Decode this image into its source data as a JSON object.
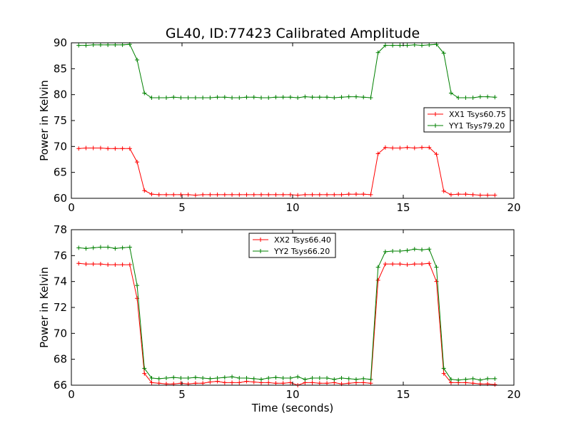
{
  "figure_title": "GL40, ID:77423 Calibrated Amplitude",
  "chart_data": [
    {
      "type": "line",
      "title": "GL40, ID:77423 Calibrated Amplitude",
      "xlabel": "",
      "ylabel": "Power in Kelvin",
      "xlim": [
        0,
        20
      ],
      "ylim": [
        60,
        90
      ],
      "xticks": [
        "0",
        "5",
        "10",
        "15",
        "20"
      ],
      "yticks": [
        "60",
        "65",
        "70",
        "75",
        "80",
        "85",
        "90"
      ],
      "grid": false,
      "legend_position": "center-right",
      "series": [
        {
          "name": "XX1 Tsys60.75",
          "color": "#ff0000",
          "x": [
            0.33,
            0.66,
            0.99,
            1.32,
            1.65,
            1.98,
            2.31,
            2.64,
            2.97,
            3.3,
            3.63,
            3.96,
            4.29,
            4.62,
            4.95,
            5.28,
            5.61,
            5.94,
            6.27,
            6.6,
            6.93,
            7.26,
            7.59,
            7.92,
            8.25,
            8.58,
            8.91,
            9.24,
            9.57,
            9.9,
            10.23,
            10.56,
            10.89,
            11.22,
            11.55,
            11.88,
            12.21,
            12.54,
            12.87,
            13.2,
            13.53,
            13.86,
            14.19,
            14.52,
            14.85,
            15.18,
            15.51,
            15.84,
            16.17,
            16.5,
            16.83,
            17.16,
            17.49,
            17.82,
            18.15,
            18.48,
            18.81,
            19.14
          ],
          "y": [
            69.6,
            69.7,
            69.7,
            69.7,
            69.6,
            69.6,
            69.6,
            69.6,
            67.0,
            61.5,
            60.8,
            60.7,
            60.7,
            60.7,
            60.7,
            60.7,
            60.6,
            60.7,
            60.7,
            60.7,
            60.7,
            60.7,
            60.7,
            60.7,
            60.7,
            60.7,
            60.7,
            60.7,
            60.7,
            60.7,
            60.6,
            60.7,
            60.7,
            60.7,
            60.7,
            60.7,
            60.7,
            60.8,
            60.8,
            60.8,
            60.7,
            68.6,
            69.8,
            69.7,
            69.7,
            69.8,
            69.7,
            69.8,
            69.8,
            68.5,
            61.4,
            60.7,
            60.8,
            60.8,
            60.7,
            60.6,
            60.6,
            60.6
          ]
        },
        {
          "name": "YY1 Tsys79.20",
          "color": "#008000",
          "x": [
            0.33,
            0.66,
            0.99,
            1.32,
            1.65,
            1.98,
            2.31,
            2.64,
            2.97,
            3.3,
            3.63,
            3.96,
            4.29,
            4.62,
            4.95,
            5.28,
            5.61,
            5.94,
            6.27,
            6.6,
            6.93,
            7.26,
            7.59,
            7.92,
            8.25,
            8.58,
            8.91,
            9.24,
            9.57,
            9.9,
            10.23,
            10.56,
            10.89,
            11.22,
            11.55,
            11.88,
            12.21,
            12.54,
            12.87,
            13.2,
            13.53,
            13.86,
            14.19,
            14.52,
            14.85,
            15.18,
            15.51,
            15.84,
            16.17,
            16.5,
            16.83,
            17.16,
            17.49,
            17.82,
            18.15,
            18.48,
            18.81,
            19.14
          ],
          "y": [
            89.5,
            89.5,
            89.6,
            89.6,
            89.6,
            89.6,
            89.6,
            89.7,
            86.7,
            80.3,
            79.4,
            79.4,
            79.4,
            79.5,
            79.4,
            79.4,
            79.4,
            79.4,
            79.4,
            79.5,
            79.5,
            79.4,
            79.4,
            79.5,
            79.5,
            79.4,
            79.4,
            79.5,
            79.5,
            79.5,
            79.4,
            79.6,
            79.5,
            79.5,
            79.5,
            79.4,
            79.5,
            79.6,
            79.6,
            79.5,
            79.4,
            88.1,
            89.5,
            89.5,
            89.5,
            89.5,
            89.6,
            89.5,
            89.6,
            89.7,
            88.0,
            80.3,
            79.4,
            79.4,
            79.4,
            79.6,
            79.6,
            79.5
          ]
        }
      ]
    },
    {
      "type": "line",
      "title": "",
      "xlabel": "Time (seconds)",
      "ylabel": "Power in Kelvin",
      "xlim": [
        0,
        20
      ],
      "ylim": [
        66,
        78
      ],
      "xticks": [
        "0",
        "5",
        "10",
        "15",
        "20"
      ],
      "yticks": [
        "66",
        "68",
        "70",
        "72",
        "74",
        "76",
        "78"
      ],
      "grid": false,
      "legend_position": "upper-center",
      "series": [
        {
          "name": "XX2 Tsys66.40",
          "color": "#ff0000",
          "x": [
            0.33,
            0.66,
            0.99,
            1.32,
            1.65,
            1.98,
            2.31,
            2.64,
            2.97,
            3.3,
            3.63,
            3.96,
            4.29,
            4.62,
            4.95,
            5.28,
            5.61,
            5.94,
            6.27,
            6.6,
            6.93,
            7.26,
            7.59,
            7.92,
            8.25,
            8.58,
            8.91,
            9.24,
            9.57,
            9.9,
            10.23,
            10.56,
            10.89,
            11.22,
            11.55,
            11.88,
            12.21,
            12.54,
            12.87,
            13.2,
            13.53,
            13.86,
            14.19,
            14.52,
            14.85,
            15.18,
            15.51,
            15.84,
            16.17,
            16.5,
            16.83,
            17.16,
            17.49,
            17.82,
            18.15,
            18.48,
            18.81,
            19.14
          ],
          "y": [
            75.4,
            75.35,
            75.35,
            75.35,
            75.3,
            75.3,
            75.3,
            75.3,
            72.7,
            66.9,
            66.2,
            66.15,
            66.1,
            66.1,
            66.15,
            66.1,
            66.15,
            66.15,
            66.25,
            66.3,
            66.2,
            66.2,
            66.2,
            66.3,
            66.25,
            66.2,
            66.2,
            66.15,
            66.15,
            66.2,
            66.0,
            66.2,
            66.2,
            66.15,
            66.15,
            66.2,
            66.1,
            66.15,
            66.2,
            66.2,
            66.15,
            74.1,
            75.35,
            75.35,
            75.35,
            75.3,
            75.35,
            75.35,
            75.4,
            74.0,
            66.9,
            66.2,
            66.2,
            66.2,
            66.15,
            66.1,
            66.1,
            66.05
          ]
        },
        {
          "name": "YY2 Tsys66.20",
          "color": "#008000",
          "x": [
            0.33,
            0.66,
            0.99,
            1.32,
            1.65,
            1.98,
            2.31,
            2.64,
            2.97,
            3.3,
            3.63,
            3.96,
            4.29,
            4.62,
            4.95,
            5.28,
            5.61,
            5.94,
            6.27,
            6.6,
            6.93,
            7.26,
            7.59,
            7.92,
            8.25,
            8.58,
            8.91,
            9.24,
            9.57,
            9.9,
            10.23,
            10.56,
            10.89,
            11.22,
            11.55,
            11.88,
            12.21,
            12.54,
            12.87,
            13.2,
            13.53,
            13.86,
            14.19,
            14.52,
            14.85,
            15.18,
            15.51,
            15.84,
            16.17,
            16.5,
            16.83,
            17.16,
            17.49,
            17.82,
            18.15,
            18.48,
            18.81,
            19.14
          ],
          "y": [
            76.6,
            76.55,
            76.6,
            76.65,
            76.65,
            76.55,
            76.6,
            76.65,
            73.7,
            67.3,
            66.55,
            66.5,
            66.55,
            66.6,
            66.55,
            66.55,
            66.6,
            66.55,
            66.5,
            66.55,
            66.6,
            66.65,
            66.55,
            66.55,
            66.5,
            66.45,
            66.55,
            66.6,
            66.55,
            66.55,
            66.65,
            66.45,
            66.55,
            66.55,
            66.55,
            66.45,
            66.55,
            66.5,
            66.45,
            66.5,
            66.45,
            75.1,
            76.3,
            76.35,
            76.35,
            76.4,
            76.5,
            76.45,
            76.5,
            75.1,
            67.3,
            66.45,
            66.4,
            66.45,
            66.5,
            66.4,
            66.5,
            66.5
          ]
        }
      ]
    }
  ]
}
